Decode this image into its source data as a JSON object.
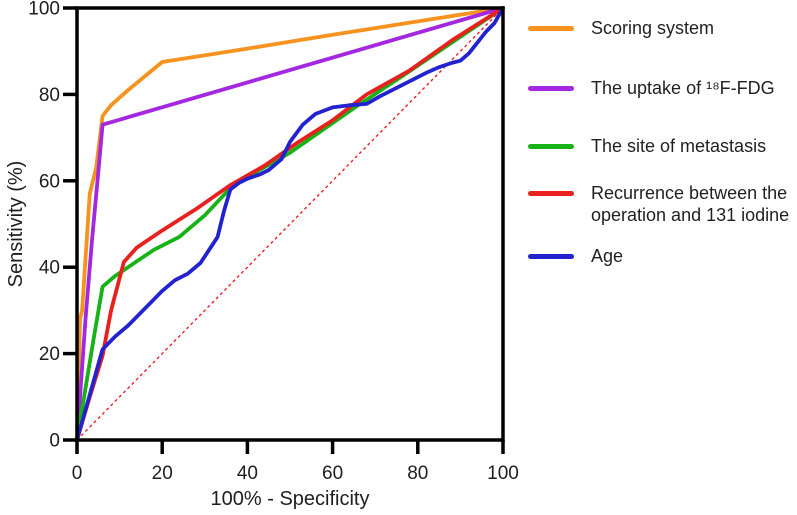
{
  "figure": {
    "background": "#FFFFFF"
  },
  "chart_data": {
    "type": "line",
    "title": "",
    "xlabel": "100% - Specificity",
    "ylabel": "Sensitivity (%)",
    "xlim": [
      0,
      100
    ],
    "ylim": [
      0,
      100
    ],
    "x_ticks": [
      "0",
      "20",
      "40",
      "60",
      "80",
      "100"
    ],
    "y_ticks": [
      "0",
      "20",
      "40",
      "60",
      "80",
      "100"
    ],
    "x_tick_values": [
      0,
      20,
      40,
      60,
      80,
      100
    ],
    "y_tick_values": [
      0,
      20,
      40,
      60,
      80,
      100
    ],
    "grid": false,
    "legend_position": "right",
    "axis_color": "#000000",
    "text_color": "#231F20",
    "reference_line": {
      "name": "chance-diagonal",
      "style": "dashed",
      "color": "#ED1C24",
      "points": [
        [
          0,
          0
        ],
        [
          100,
          100
        ]
      ]
    },
    "series": [
      {
        "name": "Scoring system",
        "color": "#F6921E",
        "points": [
          [
            0,
            0
          ],
          [
            0.7,
            28
          ],
          [
            1.2,
            30
          ],
          [
            2,
            42
          ],
          [
            3,
            57
          ],
          [
            4.5,
            63
          ],
          [
            6,
            75
          ],
          [
            8,
            77.5
          ],
          [
            12,
            81
          ],
          [
            20,
            87.5
          ],
          [
            40,
            90.6
          ],
          [
            60,
            93.8
          ],
          [
            80,
            96.9
          ],
          [
            100,
            100
          ]
        ]
      },
      {
        "name": "The uptake of ¹⁸F-FDG",
        "color": "#A428E0",
        "points": [
          [
            0,
            0
          ],
          [
            2,
            28
          ],
          [
            3.5,
            46
          ],
          [
            5,
            62
          ],
          [
            6,
            73
          ],
          [
            100,
            100
          ]
        ]
      },
      {
        "name": "The site of metastasis",
        "color": "#16B216",
        "points": [
          [
            0,
            0
          ],
          [
            2,
            12
          ],
          [
            4,
            24
          ],
          [
            6,
            35.5
          ],
          [
            9,
            38
          ],
          [
            12,
            40
          ],
          [
            18,
            44
          ],
          [
            24,
            47
          ],
          [
            30,
            52
          ],
          [
            36,
            58.3
          ],
          [
            42,
            62
          ],
          [
            50,
            66.5
          ],
          [
            58,
            72
          ],
          [
            66,
            77.5
          ],
          [
            76,
            84
          ],
          [
            88,
            92
          ],
          [
            100,
            100
          ]
        ]
      },
      {
        "name": "Recurrence between the operation and 131 iodine",
        "color": "#E8201E",
        "points": [
          [
            0,
            0
          ],
          [
            3,
            10
          ],
          [
            6,
            19.5
          ],
          [
            8,
            30
          ],
          [
            11,
            41.2
          ],
          [
            14,
            44.5
          ],
          [
            20,
            48.5
          ],
          [
            28,
            53.5
          ],
          [
            36,
            59
          ],
          [
            44,
            63.5
          ],
          [
            52,
            69
          ],
          [
            60,
            74
          ],
          [
            68,
            80
          ],
          [
            78,
            85.5
          ],
          [
            88,
            92.5
          ],
          [
            100,
            100
          ]
        ]
      },
      {
        "name": "Age",
        "color": "#2222CE",
        "points": [
          [
            0,
            0
          ],
          [
            2,
            7
          ],
          [
            4,
            14
          ],
          [
            6,
            21
          ],
          [
            9,
            24
          ],
          [
            12,
            26.5
          ],
          [
            15,
            29.5
          ],
          [
            17,
            31.5
          ],
          [
            20,
            34.5
          ],
          [
            23,
            37
          ],
          [
            26,
            38.5
          ],
          [
            29,
            41
          ],
          [
            31,
            44
          ],
          [
            33,
            47
          ],
          [
            34.5,
            53
          ],
          [
            36,
            58
          ],
          [
            38,
            59.5
          ],
          [
            40,
            60.5
          ],
          [
            43,
            61.5
          ],
          [
            45,
            62.5
          ],
          [
            48,
            65
          ],
          [
            50,
            69
          ],
          [
            53,
            73
          ],
          [
            56,
            75.5
          ],
          [
            60,
            77
          ],
          [
            64,
            77.5
          ],
          [
            68,
            77.8
          ],
          [
            71,
            79.5
          ],
          [
            74,
            81
          ],
          [
            78,
            83
          ],
          [
            82,
            85
          ],
          [
            85,
            86.3
          ],
          [
            88,
            87.3
          ],
          [
            90,
            87.8
          ],
          [
            92,
            89.5
          ],
          [
            94,
            92
          ],
          [
            96,
            94.5
          ],
          [
            98,
            96.5
          ],
          [
            100,
            100
          ]
        ]
      }
    ],
    "legend": [
      {
        "label": "Scoring system",
        "color": "#F6921E"
      },
      {
        "label": "The uptake of ¹⁸F-FDG",
        "color": "#A428E0"
      },
      {
        "label": "The site of metastasis",
        "color": "#16B216"
      },
      {
        "label": "Recurrence between the\noperation and 131 iodine",
        "color": "#E8201E"
      },
      {
        "label": "Age",
        "color": "#2222CE"
      }
    ]
  }
}
